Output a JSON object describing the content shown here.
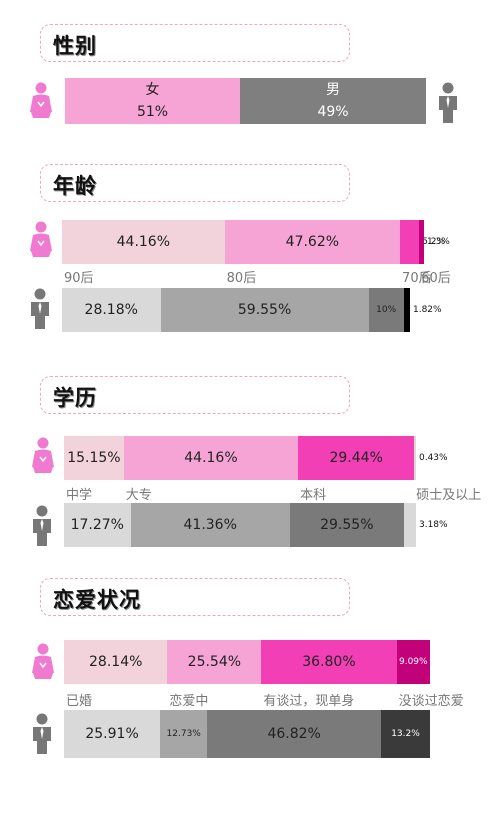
{
  "colors": {
    "female": [
      "#f2d3dc",
      "#f6a4d6",
      "#f23fb6",
      "#c2007a"
    ],
    "male": [
      "#d9d9d9",
      "#a6a6a6",
      "#7a7a7a",
      "#3a3a3a",
      "#000000"
    ],
    "title_border": "#f0a5c0",
    "female_icon": "#f07ad0",
    "male_icon": "#777777"
  },
  "icons": {
    "female": "female-person-icon",
    "male": "male-person-icon"
  },
  "chart_data": [
    {
      "type": "bar",
      "title": "性别",
      "stacked": true,
      "series": [
        {
          "name": "女",
          "values": [
            51
          ],
          "labels": [
            "51%"
          ]
        },
        {
          "name": "男",
          "values": [
            49
          ],
          "labels": [
            "49%"
          ]
        }
      ]
    },
    {
      "type": "bar",
      "title": "年龄",
      "stacked": true,
      "categories": [
        "90后",
        "80后",
        "70后",
        "60后"
      ],
      "female": {
        "values": [
          44.16,
          47.62,
          5.2,
          1.3
        ],
        "labels": [
          "44.16%",
          "47.62%",
          "5.2%",
          "1.3%"
        ]
      },
      "male": {
        "values": [
          28.18,
          59.55,
          10,
          1.82
        ],
        "labels": [
          "28.18%",
          "59.55%",
          "10%",
          "1.82%"
        ]
      }
    },
    {
      "type": "bar",
      "title": "学历",
      "stacked": true,
      "categories": [
        "中学",
        "大专",
        "本科",
        "硕士及以上"
      ],
      "female": {
        "values": [
          15.15,
          44.16,
          29.44,
          0.43
        ],
        "labels": [
          "15.15%",
          "44.16%",
          "29.44%",
          "0.43%"
        ]
      },
      "male": {
        "values": [
          17.27,
          41.36,
          29.55,
          3.18
        ],
        "labels": [
          "17.27%",
          "41.36%",
          "29.55%",
          "3.18%"
        ]
      }
    },
    {
      "type": "bar",
      "title": "恋爱状况",
      "stacked": true,
      "categories": [
        "已婚",
        "恋爱中",
        "有谈过，现单身",
        "没谈过恋爱"
      ],
      "female": {
        "values": [
          28.14,
          25.54,
          36.8,
          9.09
        ],
        "labels": [
          "28.14%",
          "25.54%",
          "36.80%",
          "9.09%"
        ]
      },
      "male": {
        "values": [
          25.91,
          12.73,
          46.82,
          13.2
        ],
        "labels": [
          "25.91%",
          "12.73%",
          "46.82%",
          "13.2%"
        ]
      }
    }
  ]
}
